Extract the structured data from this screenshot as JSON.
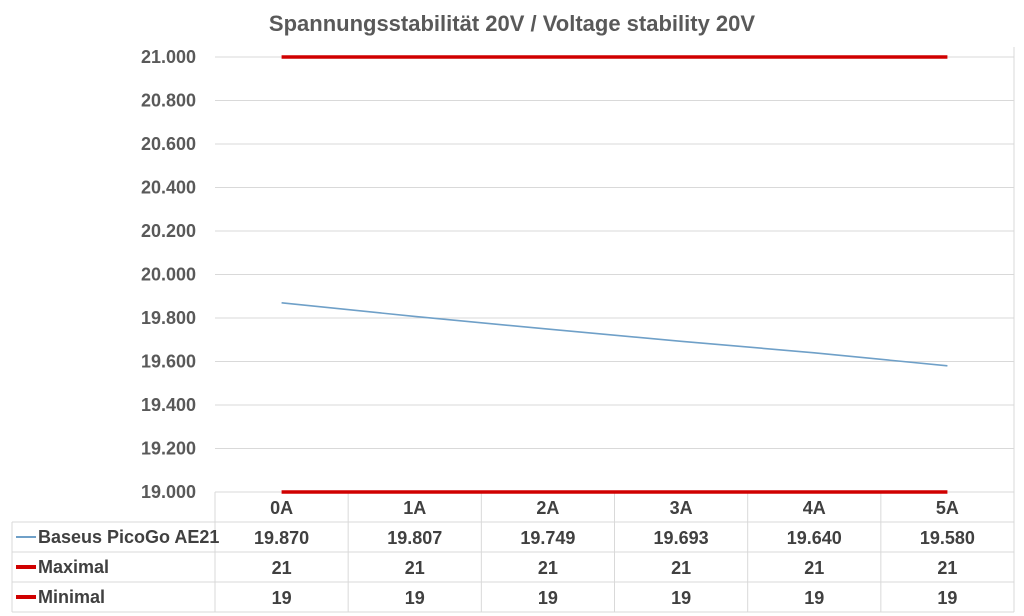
{
  "chart_data": {
    "type": "line",
    "title": "Spannungsstabilität 20V / Voltage stability 20V",
    "categories": [
      "0A",
      "1A",
      "2A",
      "3A",
      "4A",
      "5A"
    ],
    "ylim": [
      19,
      21
    ],
    "yticks": [
      "19.000",
      "19.200",
      "19.400",
      "19.600",
      "19.800",
      "20.000",
      "20.200",
      "20.400",
      "20.600",
      "20.800",
      "21.000"
    ],
    "grid": true,
    "legend": "data-table",
    "series": [
      {
        "name": "Baseus PicoGo AE21",
        "values": [
          19.87,
          19.807,
          19.749,
          19.693,
          19.64,
          19.58
        ],
        "labels": [
          "19.870",
          "19.807",
          "19.749",
          "19.693",
          "19.640",
          "19.580"
        ],
        "color": "#6fa0c8"
      },
      {
        "name": "Maximal",
        "values": [
          21,
          21,
          21,
          21,
          21,
          21
        ],
        "labels": [
          "21",
          "21",
          "21",
          "21",
          "21",
          "21"
        ],
        "color": "#d00000"
      },
      {
        "name": "Minimal",
        "values": [
          19,
          19,
          19,
          19,
          19,
          19
        ],
        "labels": [
          "19",
          "19",
          "19",
          "19",
          "19",
          "19"
        ],
        "color": "#d00000"
      }
    ]
  }
}
